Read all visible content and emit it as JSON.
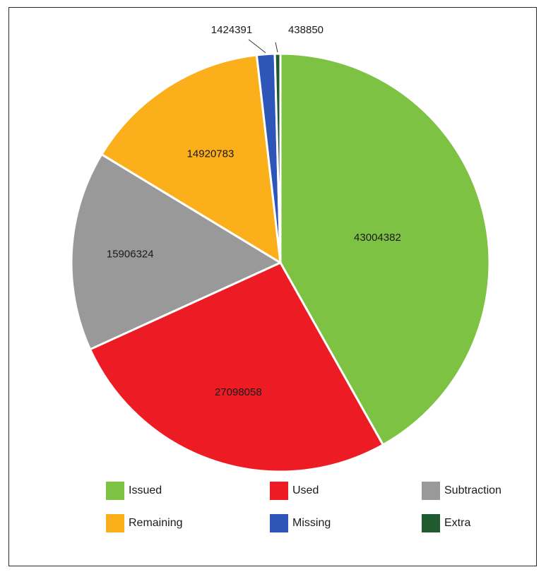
{
  "chart_data": {
    "type": "pie",
    "start_angle_deg": 0,
    "direction": "clockwise",
    "slices": [
      {
        "label": "Issued",
        "value": 43004382,
        "color": "#7dc242"
      },
      {
        "label": "Used",
        "value": 27098058,
        "color": "#ed1c24"
      },
      {
        "label": "Subtraction",
        "value": 15906324,
        "color": "#999999"
      },
      {
        "label": "Remaining",
        "value": 14920783,
        "color": "#fbaf1a"
      },
      {
        "label": "Missing",
        "value": 1424391,
        "color": "#2e55b8"
      },
      {
        "label": "Extra",
        "value": 438850,
        "color": "#1f5b2e"
      }
    ],
    "legend": {
      "position": "bottom",
      "entries": [
        "Issued",
        "Used",
        "Subtraction",
        "Remaining",
        "Missing",
        "Extra"
      ]
    }
  }
}
